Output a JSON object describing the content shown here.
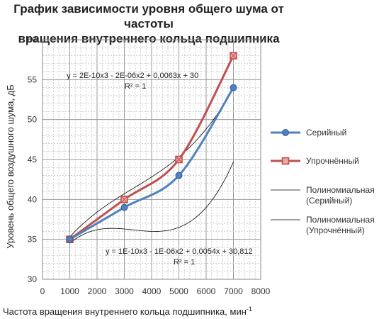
{
  "chart_data": {
    "type": "line",
    "title_line1": "График зависимости уровня общего шума от частоты",
    "title_line2": "вращения внутреннего кольца подшипника",
    "xlabel": "Частота вращения внутреннего кольца подшипника, мин",
    "xlabel_sup": "-1",
    "ylabel": "Уровень общего воздушного шума, дБ",
    "xlim": [
      0,
      8000
    ],
    "ylim": [
      30,
      60
    ],
    "x_ticks": [
      "0",
      "1000",
      "2000",
      "3000",
      "4000",
      "5000",
      "6000",
      "7000",
      "8000"
    ],
    "y_ticks": [
      "30",
      "35",
      "40",
      "45",
      "50",
      "55",
      "60"
    ],
    "grid": true,
    "series": [
      {
        "name": "Серийный",
        "color": "#4f81bd",
        "marker": "circle",
        "x": [
          1000,
          3000,
          5000,
          7000
        ],
        "y": [
          35,
          39,
          43,
          54
        ]
      },
      {
        "name": "Упрочнённый",
        "color": "#c0504d",
        "marker": "square",
        "x": [
          1000,
          3000,
          5000,
          7000
        ],
        "y": [
          35,
          40,
          45,
          58
        ]
      }
    ],
    "trendlines": [
      {
        "name_line1": "Полиномиальная",
        "name_line2": "(Серийный)",
        "color": "#000000",
        "coeffs": [
          30.812,
          0.0054,
          -1e-06,
          1e-10
        ]
      },
      {
        "name_line1": "Полиномиальная",
        "name_line2": "(Упрочнённый)",
        "color": "#000000",
        "coeffs": [
          30,
          0.0063,
          -2e-06,
          2e-10
        ]
      }
    ],
    "equations": [
      {
        "text": "y = 2E-10x3 - 2E-06x2 + 0,0063x + 30",
        "r2": "R² = 1"
      },
      {
        "text": "y = 1E-10x3 - 1E-06x2 + 0,0054x + 30,812",
        "r2": "R² = 1"
      }
    ],
    "legend_position": "right"
  }
}
